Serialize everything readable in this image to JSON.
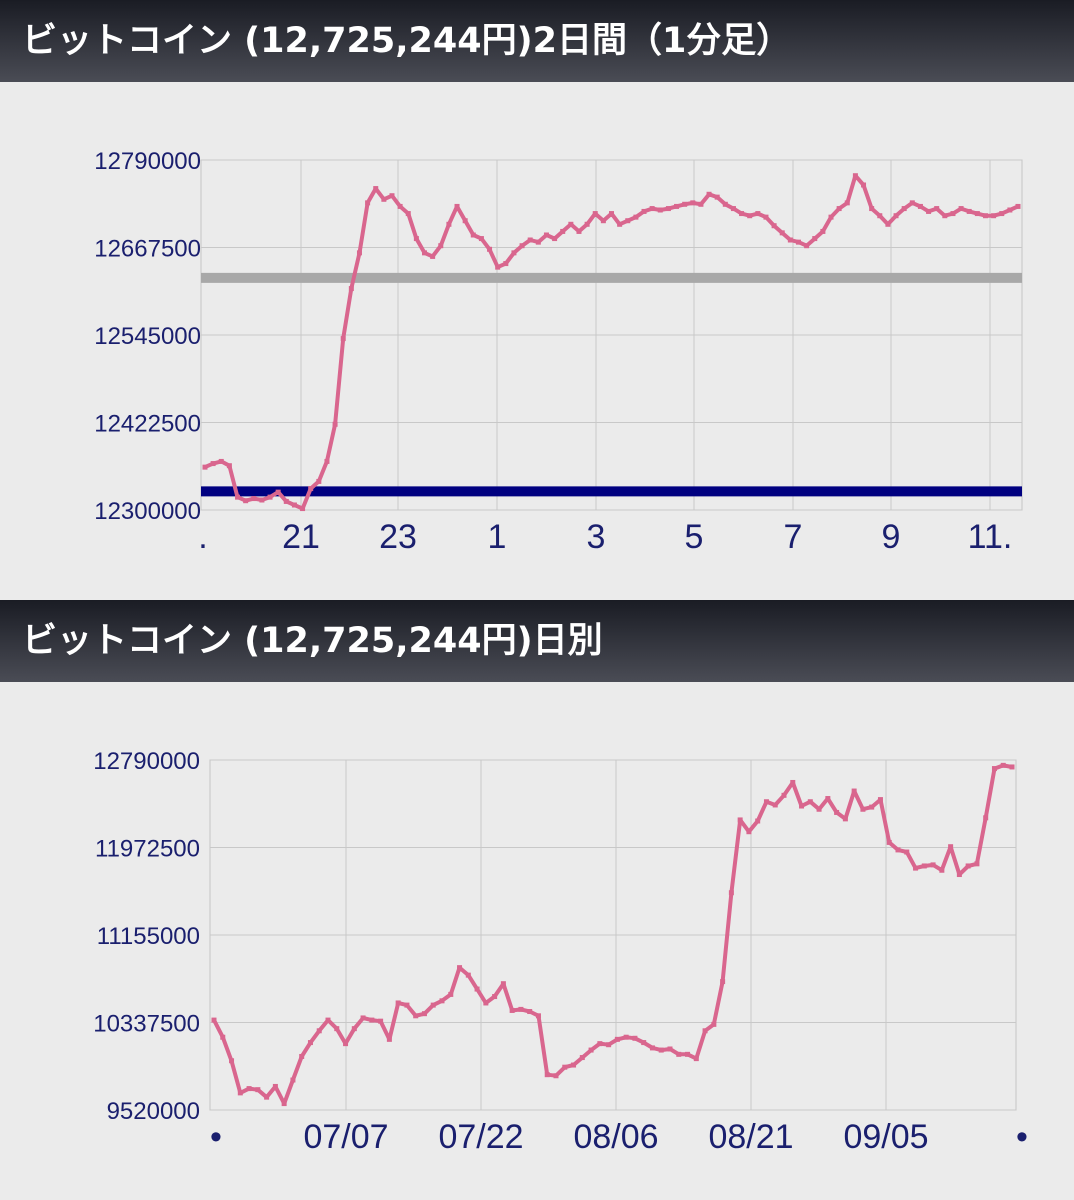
{
  "charts": [
    {
      "header": "ビットコイン (12,725,244円)2日間（1分足）",
      "chart_data": {
        "type": "line",
        "ylim": [
          12300000,
          12790000
        ],
        "ytick_labels": [
          "12790000",
          "12667500",
          "12545000",
          "12422500",
          "12300000"
        ],
        "xtick_labels": [
          ".",
          "21",
          "23",
          "1",
          "3",
          "5",
          "7",
          "9",
          "11."
        ],
        "grid": true,
        "reference_lines": [
          {
            "label": "gray",
            "value": 12625000,
            "color": "#a8a8a8"
          },
          {
            "label": "navy",
            "value": 12326000,
            "color": "#000080"
          }
        ],
        "series": [
          {
            "color": "#d9668e",
            "x": [
              0,
              1,
              2,
              3,
              4,
              5,
              6,
              7,
              8,
              9,
              10,
              11,
              12,
              13,
              14,
              15,
              16,
              17,
              18,
              19,
              20,
              21,
              22,
              23,
              24,
              25,
              26,
              27,
              28,
              29,
              30,
              31,
              32,
              33,
              34,
              35,
              36,
              37,
              38,
              39,
              40,
              41,
              42,
              43,
              44,
              45,
              46,
              47,
              48,
              49,
              50,
              51,
              52,
              53,
              54,
              55,
              56,
              57,
              58,
              59,
              60,
              61,
              62,
              63,
              64,
              65,
              66,
              67,
              68,
              69,
              70,
              71,
              72,
              73,
              74,
              75,
              76,
              77,
              78,
              79,
              80,
              81,
              82,
              83,
              84,
              85,
              86,
              87,
              88,
              89,
              90,
              91,
              92,
              93,
              94,
              95,
              96,
              97,
              98,
              99,
              100
            ],
            "y": [
              12360000,
              12365000,
              12368000,
              12362000,
              12318000,
              12313000,
              12316000,
              12314000,
              12318000,
              12325000,
              12312000,
              12307000,
              12302000,
              12330000,
              12340000,
              12368000,
              12420000,
              12540000,
              12610000,
              12660000,
              12730000,
              12750000,
              12735000,
              12740000,
              12725000,
              12715000,
              12680000,
              12660000,
              12655000,
              12670000,
              12700000,
              12725000,
              12705000,
              12685000,
              12680000,
              12665000,
              12640000,
              12645000,
              12660000,
              12670000,
              12678000,
              12675000,
              12685000,
              12680000,
              12690000,
              12700000,
              12690000,
              12700000,
              12715000,
              12705000,
              12715000,
              12700000,
              12705000,
              12710000,
              12718000,
              12722000,
              12720000,
              12722000,
              12725000,
              12728000,
              12730000,
              12728000,
              12742000,
              12738000,
              12728000,
              12722000,
              12715000,
              12712000,
              12715000,
              12710000,
              12698000,
              12688000,
              12678000,
              12675000,
              12670000,
              12680000,
              12690000,
              12710000,
              12722000,
              12730000,
              12768000,
              12755000,
              12722000,
              12712000,
              12700000,
              12712000,
              12722000,
              12730000,
              12725000,
              12718000,
              12722000,
              12712000,
              12715000,
              12722000,
              12718000,
              12715000,
              12712000,
              12712000,
              12715000,
              12720000,
              12725000
            ]
          }
        ]
      }
    },
    {
      "header": "ビットコイン (12,725,244円)日別",
      "chart_data": {
        "type": "line",
        "ylim": [
          9520000,
          12790000
        ],
        "ytick_labels": [
          "12790000",
          "11972500",
          "11155000",
          "10337500",
          "9520000"
        ],
        "xtick_labels": [
          "•",
          "07/07",
          "07/22",
          "08/06",
          "08/21",
          "09/05",
          "•"
        ],
        "grid": true,
        "series": [
          {
            "color": "#d9668e",
            "x": [
              0,
              1,
              2,
              3,
              4,
              5,
              6,
              7,
              8,
              9,
              10,
              11,
              12,
              13,
              14,
              15,
              16,
              17,
              18,
              19,
              20,
              21,
              22,
              23,
              24,
              25,
              26,
              27,
              28,
              29,
              30,
              31,
              32,
              33,
              34,
              35,
              36,
              37,
              38,
              39,
              40,
              41,
              42,
              43,
              44,
              45,
              46,
              47,
              48,
              49,
              50,
              51,
              52,
              53,
              54,
              55,
              56,
              57,
              58,
              59,
              60,
              61,
              62,
              63,
              64,
              65,
              66,
              67,
              68,
              69,
              70,
              71,
              72,
              73,
              74,
              75,
              76,
              77,
              78,
              79,
              80,
              81,
              82,
              83,
              84,
              85,
              86,
              87,
              88,
              89,
              90,
              91
            ],
            "y": [
              10360000,
              10200000,
              9980000,
              9680000,
              9720000,
              9710000,
              9640000,
              9740000,
              9580000,
              9800000,
              10020000,
              10150000,
              10260000,
              10360000,
              10280000,
              10140000,
              10280000,
              10380000,
              10360000,
              10350000,
              10180000,
              10520000,
              10500000,
              10400000,
              10420000,
              10500000,
              10540000,
              10600000,
              10850000,
              10780000,
              10650000,
              10520000,
              10580000,
              10700000,
              10450000,
              10460000,
              10440000,
              10400000,
              9850000,
              9840000,
              9920000,
              9940000,
              10010000,
              10080000,
              10140000,
              10130000,
              10180000,
              10200000,
              10190000,
              10150000,
              10100000,
              10080000,
              10090000,
              10040000,
              10040000,
              10000000,
              10260000,
              10320000,
              10720000,
              11550000,
              12230000,
              12120000,
              12220000,
              12400000,
              12370000,
              12460000,
              12580000,
              12360000,
              12400000,
              12330000,
              12430000,
              12300000,
              12240000,
              12500000,
              12330000,
              12350000,
              12420000,
              12020000,
              11950000,
              11930000,
              11780000,
              11800000,
              11810000,
              11760000,
              11980000,
              11720000,
              11800000,
              11820000,
              12250000,
              12710000,
              12740000,
              12725000
            ]
          }
        ]
      }
    }
  ]
}
